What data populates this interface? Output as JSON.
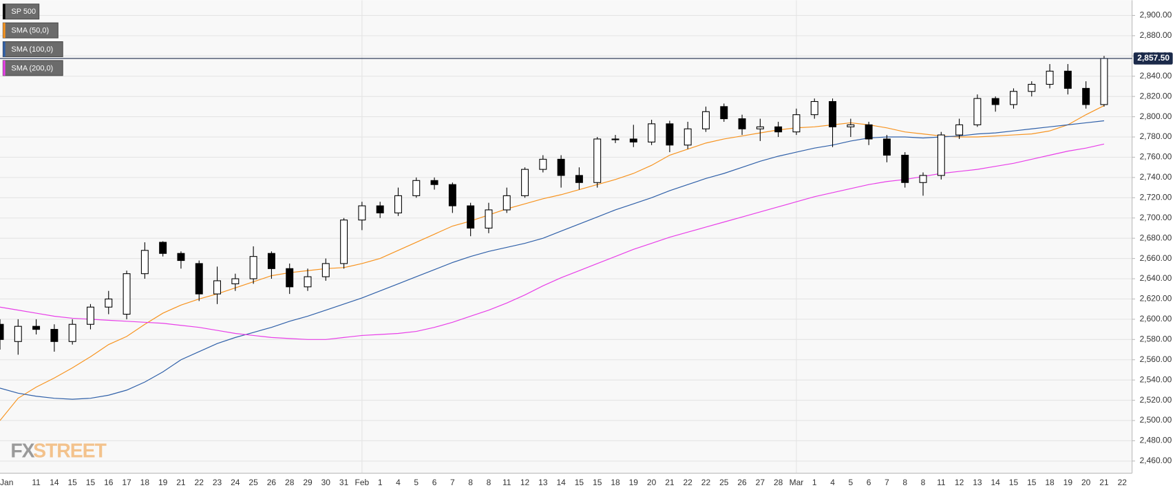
{
  "chart_data": {
    "type": "candlestick",
    "categories": [
      "Jan",
      null,
      "11",
      "14",
      "15",
      "15",
      "16",
      "17",
      "18",
      "19",
      "21",
      "22",
      "23",
      "24",
      "25",
      "26",
      "28",
      "29",
      "30",
      "31",
      "Feb",
      "1",
      "4",
      "5",
      "6",
      "7",
      "8",
      "8",
      "11",
      "12",
      "13",
      "14",
      "15",
      "15",
      "18",
      "19",
      "20",
      "21",
      "22",
      "22",
      "25",
      "26",
      "27",
      "28",
      "Mar",
      "1",
      "4",
      "5",
      "6",
      "7",
      "8",
      "8",
      "11",
      "12",
      "13",
      "14",
      "15",
      "15",
      "18",
      "19",
      "20",
      "21",
      "22"
    ],
    "candles": {
      "name": "SP 500",
      "color": "#000000",
      "open": [
        2595,
        2578,
        2593,
        2590,
        2578,
        2595,
        2612,
        2605,
        2645,
        2676,
        2665,
        2655,
        2625,
        2635,
        2640,
        2665,
        2650,
        2632,
        2642,
        2655,
        2698,
        2712,
        2705,
        2722,
        2737,
        2733,
        2712,
        2690,
        2708,
        2722,
        2748,
        2758,
        2742,
        2735,
        2778,
        2778,
        2775,
        2793,
        2772,
        2788,
        2810,
        2798,
        2788,
        2790,
        2785,
        2802,
        2815,
        2790,
        2792,
        2778,
        2762,
        2735,
        2742,
        2782,
        2792,
        2818,
        2812,
        2825,
        2832,
        2845,
        2828,
        2812,
        null
      ],
      "high": [
        2600,
        2600,
        2600,
        2595,
        2600,
        2615,
        2628,
        2648,
        2676,
        2677,
        2667,
        2658,
        2652,
        2645,
        2672,
        2667,
        2655,
        2650,
        2660,
        2700,
        2716,
        2716,
        2730,
        2740,
        2740,
        2735,
        2715,
        2715,
        2730,
        2750,
        2762,
        2762,
        2750,
        2780,
        2782,
        2792,
        2797,
        2796,
        2795,
        2810,
        2813,
        2802,
        2798,
        2795,
        2808,
        2818,
        2818,
        2798,
        2795,
        2782,
        2765,
        2745,
        2785,
        2798,
        2822,
        2820,
        2828,
        2835,
        2852,
        2852,
        2835,
        2860,
        null
      ],
      "low": [
        2570,
        2565,
        2585,
        2568,
        2575,
        2590,
        2605,
        2600,
        2640,
        2662,
        2650,
        2618,
        2615,
        2628,
        2635,
        2640,
        2625,
        2628,
        2638,
        2650,
        2688,
        2700,
        2702,
        2720,
        2728,
        2705,
        2682,
        2685,
        2705,
        2720,
        2745,
        2730,
        2728,
        2730,
        2774,
        2770,
        2772,
        2765,
        2768,
        2785,
        2795,
        2782,
        2776,
        2780,
        2782,
        2798,
        2770,
        2780,
        2772,
        2755,
        2730,
        2722,
        2738,
        2778,
        2790,
        2805,
        2808,
        2820,
        2828,
        2822,
        2808,
        2810,
        null
      ],
      "close": [
        2580,
        2593,
        2590,
        2578,
        2595,
        2612,
        2620,
        2645,
        2668,
        2665,
        2658,
        2625,
        2638,
        2640,
        2662,
        2650,
        2632,
        2642,
        2655,
        2698,
        2712,
        2705,
        2722,
        2737,
        2733,
        2712,
        2690,
        2708,
        2722,
        2748,
        2758,
        2742,
        2735,
        2778,
        2778,
        2775,
        2793,
        2772,
        2788,
        2805,
        2798,
        2788,
        2790,
        2785,
        2802,
        2815,
        2790,
        2792,
        2778,
        2762,
        2735,
        2742,
        2782,
        2792,
        2818,
        2812,
        2825,
        2832,
        2845,
        2828,
        2812,
        2857.5,
        null
      ]
    },
    "series": [
      {
        "name": "SMA (50,0)",
        "color": "#f7931e",
        "values": [
          2500,
          2522,
          2533,
          2542,
          2552,
          2563,
          2575,
          2583,
          2595,
          2606,
          2614,
          2620,
          2625,
          2631,
          2637,
          2643,
          2646,
          2648,
          2650,
          2651,
          2655,
          2660,
          2668,
          2676,
          2684,
          2692,
          2697,
          2703,
          2709,
          2714,
          2719,
          2723,
          2728,
          2733,
          2738,
          2744,
          2752,
          2762,
          2768,
          2774,
          2778,
          2781,
          2784,
          2787,
          2789,
          2790,
          2792,
          2794,
          2792,
          2789,
          2785,
          2783,
          2781,
          2780,
          2780,
          2781,
          2782,
          2783,
          2786,
          2792,
          2802,
          2811,
          null
        ]
      },
      {
        "name": "SMA (100,0)",
        "color": "#2e5fa8",
        "values": [
          2532,
          2527,
          2524,
          2522,
          2521,
          2522,
          2525,
          2530,
          2538,
          2548,
          2560,
          2568,
          2576,
          2582,
          2587,
          2592,
          2598,
          2603,
          2609,
          2615,
          2621,
          2628,
          2635,
          2642,
          2649,
          2656,
          2662,
          2667,
          2671,
          2675,
          2680,
          2687,
          2694,
          2701,
          2708,
          2714,
          2720,
          2727,
          2733,
          2739,
          2744,
          2750,
          2756,
          2761,
          2765,
          2769,
          2772,
          2776,
          2779,
          2780,
          2780,
          2779,
          2780,
          2781,
          2783,
          2784,
          2786,
          2788,
          2790,
          2792,
          2794,
          2796,
          null
        ]
      },
      {
        "name": "SMA (200,0)",
        "color": "#e83ee8",
        "values": [
          2612,
          2609,
          2606,
          2603,
          2601,
          2600,
          2599,
          2598,
          2597,
          2596,
          2594,
          2592,
          2589,
          2586,
          2584,
          2582,
          2581,
          2580,
          2580,
          2582,
          2584,
          2585,
          2586,
          2588,
          2592,
          2597,
          2603,
          2609,
          2616,
          2624,
          2633,
          2641,
          2648,
          2655,
          2662,
          2669,
          2675,
          2681,
          2686,
          2691,
          2696,
          2701,
          2706,
          2711,
          2716,
          2721,
          2725,
          2729,
          2733,
          2736,
          2738,
          2741,
          2744,
          2746,
          2748,
          2751,
          2754,
          2758,
          2762,
          2766,
          2769,
          2773,
          null
        ]
      }
    ],
    "last_price": {
      "value": 2857.5,
      "label": "2,857.50",
      "color": "#1b2a4a"
    },
    "ylim": [
      2448,
      2915
    ],
    "yticks": [
      {
        "value": 2460,
        "label": "2,460.00"
      },
      {
        "value": 2480,
        "label": "2,480.00"
      },
      {
        "value": 2500,
        "label": "2,500.00"
      },
      {
        "value": 2520,
        "label": "2,520.00"
      },
      {
        "value": 2540,
        "label": "2,540.00"
      },
      {
        "value": 2560,
        "label": "2,560.00"
      },
      {
        "value": 2580,
        "label": "2,580.00"
      },
      {
        "value": 2600,
        "label": "2,600.00"
      },
      {
        "value": 2620,
        "label": "2,620.00"
      },
      {
        "value": 2640,
        "label": "2,640.00"
      },
      {
        "value": 2660,
        "label": "2,660.00"
      },
      {
        "value": 2680,
        "label": "2,680.00"
      },
      {
        "value": 2700,
        "label": "2,700.00"
      },
      {
        "value": 2720,
        "label": "2,720.00"
      },
      {
        "value": 2740,
        "label": "2,740.00"
      },
      {
        "value": 2760,
        "label": "2,760.00"
      },
      {
        "value": 2780,
        "label": "2,780.00"
      },
      {
        "value": 2800,
        "label": "2,800.00"
      },
      {
        "value": 2820,
        "label": "2,820.00"
      },
      {
        "value": 2840,
        "label": "2,840.00"
      },
      {
        "value": 2860,
        "label": "2,860.00"
      },
      {
        "value": 2880,
        "label": "2,880.00"
      },
      {
        "value": 2900,
        "label": "2,900.00"
      }
    ],
    "grid": true,
    "legend": "top-left",
    "watermark_left": "FX",
    "watermark_right": "STREET"
  }
}
